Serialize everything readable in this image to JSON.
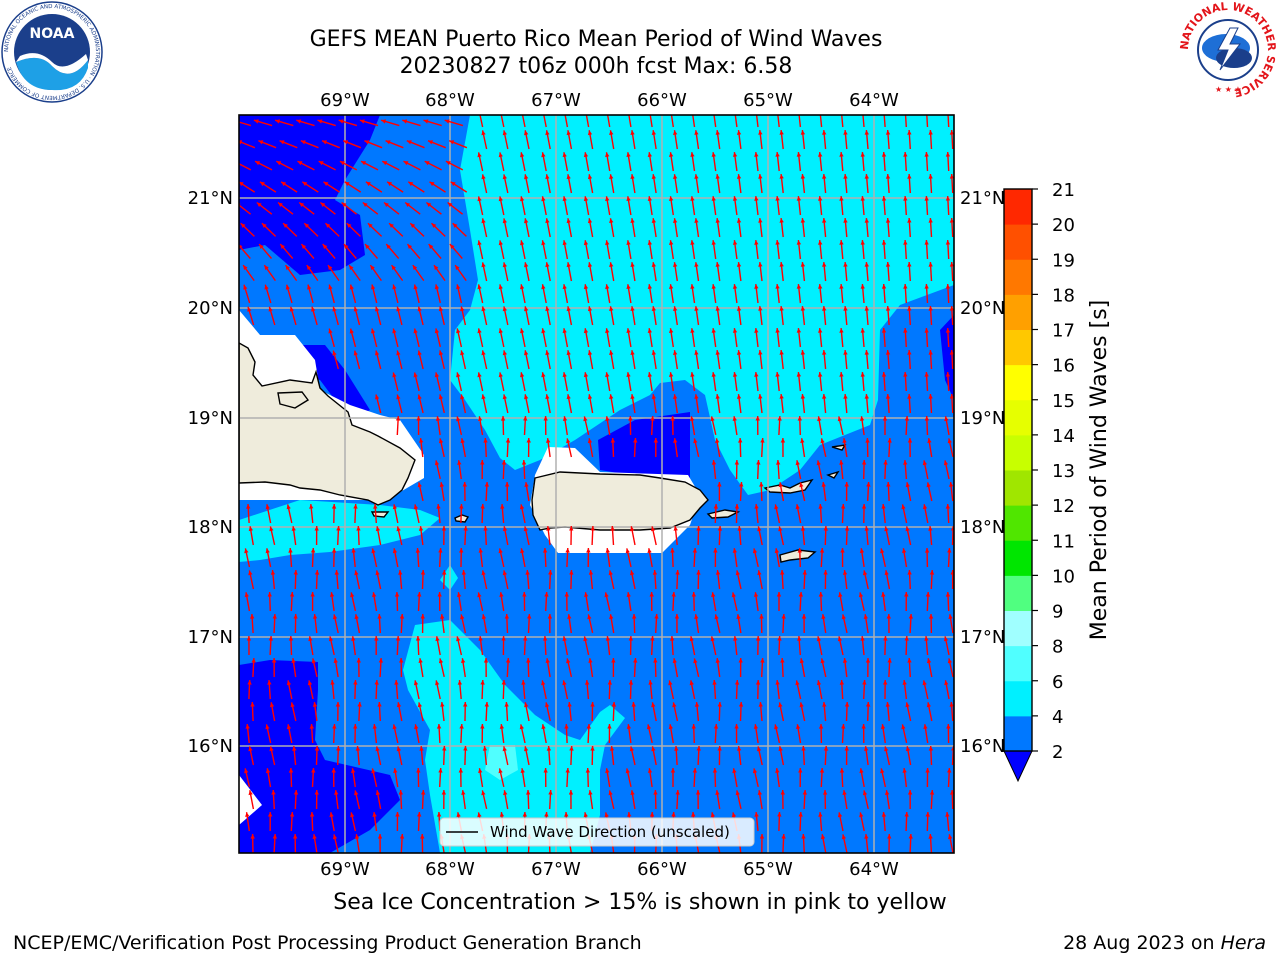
{
  "title_line1": "GEFS MEAN Puerto Rico Mean Period of Wind Waves",
  "title_line2": "20230827 t06z 000h fcst   Max: 6.58",
  "caption": "Sea Ice Concentration > 15% is shown in pink to yellow",
  "footer_left": "NCEP/EMC/Verification Post Processing Product Generation Branch",
  "footer_right_date": "28 Aug 2023 on ",
  "footer_right_machine": "Hera",
  "legend_label": "Wind Wave Direction (unscaled)",
  "logos": {
    "noaa_text": "NOAA",
    "noaa_ring": "NATIONAL OCEANIC AND ATMOSPHERIC ADMINISTRATION · U.S. DEPARTMENT OF COMMERCE",
    "nws_ring": "NATIONAL WEATHER SERVICE"
  },
  "map": {
    "lon_labels": [
      "69°W",
      "68°W",
      "67°W",
      "66°W",
      "65°W",
      "64°W"
    ],
    "lat_labels": [
      "21°N",
      "20°N",
      "19°N",
      "18°N",
      "17°N",
      "16°N"
    ],
    "arrow_color": "#ff0000",
    "land_color": "#efecdc"
  },
  "colorbar": {
    "label": "Mean Period of Wind Waves [s]",
    "ticks": [
      "2",
      "4",
      "6",
      "8",
      "9",
      "10",
      "11",
      "12",
      "13",
      "14",
      "15",
      "16",
      "17",
      "18",
      "19",
      "20",
      "21"
    ],
    "colors": [
      "#0078ff",
      "#00f0ff",
      "#50ffff",
      "#a0ffff",
      "#50ff80",
      "#00e600",
      "#50e600",
      "#a0e600",
      "#c8ff00",
      "#e6ff00",
      "#ffff00",
      "#ffc800",
      "#ffa000",
      "#ff7800",
      "#ff5000",
      "#ff2800"
    ],
    "extend_color": "#0000ff"
  }
}
